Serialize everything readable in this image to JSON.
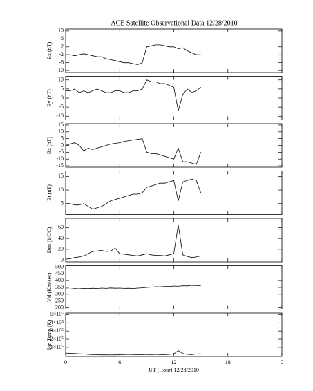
{
  "chart_data": [
    {
      "type": "line",
      "title": "ACE Satellite Observational Data   12/28/2010",
      "ylabel": "Bx (nT)",
      "color": "#000000",
      "x": [
        0,
        0.5,
        1,
        1.5,
        2,
        2.5,
        3,
        3.5,
        4,
        4.5,
        5,
        5.5,
        6,
        6.5,
        7,
        7.5,
        8,
        8.5,
        9,
        9.5,
        10,
        10.5,
        11,
        11.5,
        12,
        12.5,
        13,
        13.5,
        14,
        14.5,
        15
      ],
      "values": [
        -2,
        -2,
        -2.5,
        -2,
        -1.5,
        -2,
        -2.5,
        -3,
        -3,
        -4,
        -4.5,
        -5,
        -5.5,
        -6,
        -6,
        -6.5,
        -7,
        -6,
        2,
        2.5,
        3,
        3,
        2.5,
        2,
        2,
        1,
        1.5,
        0,
        -1,
        -2,
        -2
      ],
      "xlim": [
        0,
        24
      ],
      "xticks": [
        0,
        6,
        12,
        18,
        {
          "value": 24,
          "label": "0"
        }
      ],
      "ylim": [
        -11,
        11
      ],
      "yticks": [
        -10,
        -6,
        -2,
        2,
        6,
        10
      ]
    },
    {
      "type": "line",
      "ylabel": "By (nT)",
      "color": "#000000",
      "x": [
        0,
        0.5,
        1,
        1.5,
        2,
        2.5,
        3,
        3.5,
        4,
        4.5,
        5,
        5.5,
        6,
        6.5,
        7,
        7.5,
        8,
        8.5,
        9,
        9.5,
        10,
        10.5,
        11,
        11.5,
        12,
        12.5,
        13,
        13.5,
        14,
        14.5,
        15
      ],
      "values": [
        4,
        4,
        5,
        3,
        4,
        3,
        4,
        5,
        4,
        3,
        3,
        4,
        4,
        3,
        3,
        4,
        4,
        5,
        10,
        9,
        9,
        8,
        8,
        7,
        6,
        -7,
        2,
        5,
        3,
        4,
        6
      ],
      "xlim": [
        0,
        24
      ],
      "xticks": [
        0,
        6,
        12,
        18,
        {
          "value": 24,
          "label": "0"
        }
      ],
      "ylim": [
        -12,
        12
      ],
      "yticks": [
        -10,
        -5,
        0,
        5,
        10
      ]
    },
    {
      "type": "line",
      "ylabel": "Bz (nT)",
      "color": "#000000",
      "x": [
        0,
        0.5,
        1,
        1.5,
        2,
        2.5,
        3,
        3.5,
        4,
        4.5,
        5,
        5.5,
        6,
        6.5,
        7,
        7.5,
        8,
        8.5,
        9,
        9.5,
        10,
        10.5,
        11,
        11.5,
        12,
        12.5,
        13,
        13.5,
        14,
        14.5,
        15
      ],
      "values": [
        0,
        1,
        2,
        0,
        -4,
        -2,
        -3,
        -2,
        -1,
        0,
        1,
        1.5,
        2,
        3,
        3.5,
        4,
        4.5,
        5,
        -5,
        -6,
        -6,
        -7,
        -8,
        -9,
        -10,
        -2,
        -12,
        -12,
        -13,
        -14,
        -5
      ],
      "xlim": [
        0,
        24
      ],
      "xticks": [
        0,
        6,
        12,
        18,
        {
          "value": 24,
          "label": "0"
        }
      ],
      "ylim": [
        -16,
        16
      ],
      "yticks": [
        -15,
        -10,
        -5,
        0,
        5,
        10,
        15
      ]
    },
    {
      "type": "line",
      "ylabel": "Bt (nT)",
      "color": "#000000",
      "x": [
        0,
        0.5,
        1,
        1.5,
        2,
        2.5,
        3,
        3.5,
        4,
        4.5,
        5,
        5.5,
        6,
        6.5,
        7,
        7.5,
        8,
        8.5,
        9,
        9.5,
        10,
        10.5,
        11,
        11.5,
        12,
        12.5,
        13,
        13.5,
        14,
        14.5,
        15
      ],
      "values": [
        5,
        5,
        4.5,
        4.5,
        5,
        4,
        3,
        3.5,
        4,
        5,
        6,
        6.5,
        7,
        7.5,
        8,
        8.5,
        8.5,
        9,
        11,
        11.5,
        12,
        12.5,
        12.5,
        13,
        13.5,
        6,
        13,
        13.5,
        14,
        13.5,
        9
      ],
      "xlim": [
        0,
        24
      ],
      "xticks": [
        0,
        6,
        12,
        18,
        {
          "value": 24,
          "label": "0"
        }
      ],
      "ylim": [
        1,
        17
      ],
      "yticks": [
        5,
        10,
        15
      ]
    },
    {
      "type": "line",
      "ylabel": "Den (1/CC)",
      "color": "#000000",
      "x": [
        0,
        0.5,
        1,
        1.5,
        2,
        2.5,
        3,
        3.5,
        4,
        4.5,
        5,
        5.5,
        6,
        6.5,
        7,
        7.5,
        8,
        8.5,
        9,
        9.5,
        10,
        10.5,
        11,
        11.5,
        12,
        12.5,
        13,
        13.5,
        14,
        14.5,
        15
      ],
      "values": [
        2,
        3,
        5,
        6,
        8,
        12,
        16,
        17,
        18,
        16,
        17,
        22,
        12,
        11,
        10,
        9,
        8,
        10,
        12,
        10,
        9,
        9,
        8,
        10,
        12,
        65,
        10,
        7,
        5,
        6,
        8
      ],
      "xlim": [
        0,
        24
      ],
      "xticks": [
        0,
        6,
        12,
        18,
        {
          "value": 24,
          "label": "0"
        }
      ],
      "ylim": [
        -3,
        77
      ],
      "yticks": [
        0,
        20,
        40,
        60
      ]
    },
    {
      "type": "line",
      "ylabel": "Vel (Km/sec)",
      "color": "#000000",
      "x": [
        0,
        0.5,
        1,
        1.5,
        2,
        2.5,
        3,
        3.5,
        4,
        4.5,
        5,
        5.5,
        6,
        6.5,
        7,
        7.5,
        8,
        8.5,
        9,
        9.5,
        10,
        10.5,
        11,
        11.5,
        12,
        12.5,
        13,
        13.5,
        14,
        14.5,
        15
      ],
      "values": [
        340,
        338,
        342,
        340,
        343,
        341,
        344,
        342,
        345,
        343,
        346,
        344,
        345,
        343,
        344,
        342,
        345,
        347,
        350,
        352,
        355,
        354,
        357,
        356,
        360,
        358,
        362,
        361,
        365,
        363,
        362
      ],
      "xlim": [
        0,
        24
      ],
      "xticks": [
        0,
        6,
        12,
        18,
        {
          "value": 24,
          "label": "0"
        }
      ],
      "ylim": [
        190,
        510
      ],
      "yticks": [
        200,
        250,
        300,
        350,
        400,
        450,
        500
      ]
    },
    {
      "type": "line",
      "ylabel": "Ion Temp (K)",
      "xlabel": "UT (Hour)  12/28/2010",
      "color": "#000000",
      "x": [
        0,
        0.5,
        1,
        1.5,
        2,
        2.5,
        3,
        3.5,
        4,
        4.5,
        5,
        5.5,
        6,
        6.5,
        7,
        7.5,
        8,
        8.5,
        9,
        9.5,
        10,
        10.5,
        11,
        11.5,
        12,
        12.5,
        13,
        13.5,
        14,
        14.5,
        15
      ],
      "values": [
        30000,
        28000,
        25000,
        22000,
        20000,
        15000,
        12000,
        10000,
        9000,
        10000,
        8000,
        9000,
        10000,
        12000,
        15000,
        12000,
        10000,
        12000,
        14000,
        12000,
        15000,
        13000,
        12000,
        15000,
        20000,
        60000,
        25000,
        15000,
        12000,
        20000,
        22000
      ],
      "xlim": [
        0,
        24
      ],
      "xticks": [
        0,
        6,
        12,
        18,
        {
          "value": 24,
          "label": "0"
        }
      ],
      "ylim": [
        -10000,
        520000
      ],
      "yticks": [
        {
          "value": 100000,
          "label": "1×10⁵"
        },
        {
          "value": 200000,
          "label": "2×10⁵"
        },
        {
          "value": 300000,
          "label": "3×10⁵"
        },
        {
          "value": 400000,
          "label": "4×10⁵"
        },
        {
          "value": 500000,
          "label": "5×10⁵"
        }
      ]
    }
  ]
}
